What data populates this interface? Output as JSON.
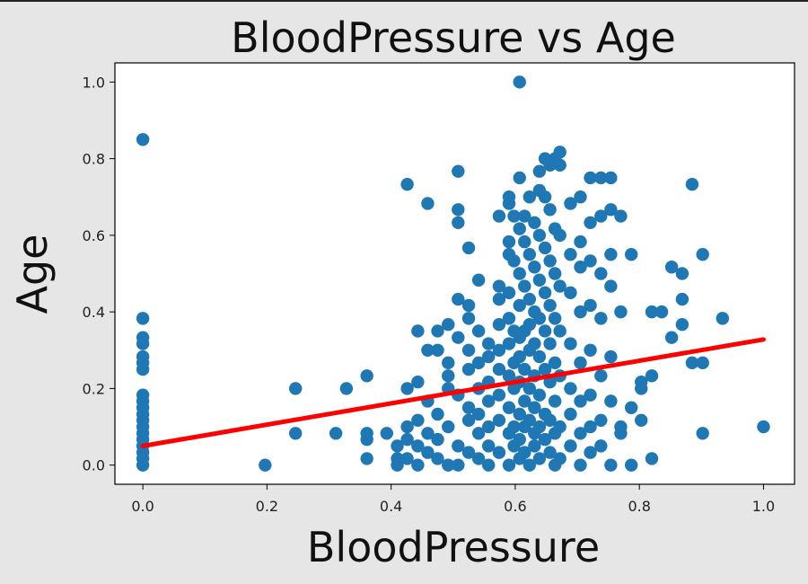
{
  "chart_data": {
    "type": "scatter",
    "title": "BloodPressure vs Age",
    "xlabel": "BloodPressure",
    "ylabel": "Age",
    "xlim": [
      -0.045,
      1.05
    ],
    "ylim": [
      -0.05,
      1.05
    ],
    "xticks": [
      "0.0",
      "0.2",
      "0.4",
      "0.6",
      "0.8",
      "1.0"
    ],
    "yticks": [
      "0.0",
      "0.2",
      "0.4",
      "0.6",
      "0.8",
      "1.0"
    ],
    "grid": false,
    "colors": {
      "points": "#1f77b4",
      "regression": "#ff0000"
    },
    "series": [
      {
        "kind": "points",
        "points": [
          [
            0.0,
            0.85
          ],
          [
            0.0,
            0.383
          ],
          [
            0.0,
            0.333
          ],
          [
            0.0,
            0.317
          ],
          [
            0.0,
            0.283
          ],
          [
            0.0,
            0.267
          ],
          [
            0.0,
            0.25
          ],
          [
            0.0,
            0.183
          ],
          [
            0.0,
            0.167
          ],
          [
            0.0,
            0.15
          ],
          [
            0.0,
            0.133
          ],
          [
            0.0,
            0.117
          ],
          [
            0.0,
            0.1
          ],
          [
            0.0,
            0.083
          ],
          [
            0.0,
            0.067
          ],
          [
            0.0,
            0.05
          ],
          [
            0.0,
            0.033
          ],
          [
            0.0,
            0.017
          ],
          [
            0.0,
            0.0
          ],
          [
            0.197,
            0.0
          ],
          [
            0.246,
            0.2
          ],
          [
            0.246,
            0.083
          ],
          [
            0.311,
            0.083
          ],
          [
            0.328,
            0.2
          ],
          [
            0.361,
            0.233
          ],
          [
            0.361,
            0.083
          ],
          [
            0.361,
            0.067
          ],
          [
            0.361,
            0.017
          ],
          [
            0.393,
            0.083
          ],
          [
            0.41,
            0.05
          ],
          [
            0.41,
            0.017
          ],
          [
            0.41,
            0.0
          ],
          [
            0.426,
            0.2
          ],
          [
            0.426,
            0.1
          ],
          [
            0.426,
            0.067
          ],
          [
            0.426,
            0.017
          ],
          [
            0.426,
            0.733
          ],
          [
            0.443,
            0.35
          ],
          [
            0.443,
            0.217
          ],
          [
            0.443,
            0.117
          ],
          [
            0.443,
            0.05
          ],
          [
            0.443,
            0.0
          ],
          [
            0.459,
            0.683
          ],
          [
            0.459,
            0.3
          ],
          [
            0.459,
            0.167
          ],
          [
            0.459,
            0.083
          ],
          [
            0.459,
            0.033
          ],
          [
            0.475,
            0.35
          ],
          [
            0.475,
            0.3
          ],
          [
            0.475,
            0.133
          ],
          [
            0.475,
            0.067
          ],
          [
            0.475,
            0.017
          ],
          [
            0.492,
            0.367
          ],
          [
            0.492,
            0.267
          ],
          [
            0.492,
            0.2
          ],
          [
            0.492,
            0.1
          ],
          [
            0.492,
            0.0
          ],
          [
            0.492,
            0.233
          ],
          [
            0.508,
            0.767
          ],
          [
            0.508,
            0.667
          ],
          [
            0.508,
            0.633
          ],
          [
            0.508,
            0.433
          ],
          [
            0.508,
            0.333
          ],
          [
            0.508,
            0.183
          ],
          [
            0.508,
            0.05
          ],
          [
            0.508,
            0.0
          ],
          [
            0.525,
            0.567
          ],
          [
            0.525,
            0.417
          ],
          [
            0.525,
            0.383
          ],
          [
            0.525,
            0.3
          ],
          [
            0.525,
            0.25
          ],
          [
            0.525,
            0.15
          ],
          [
            0.525,
            0.117
          ],
          [
            0.525,
            0.033
          ],
          [
            0.541,
            0.483
          ],
          [
            0.541,
            0.35
          ],
          [
            0.541,
            0.267
          ],
          [
            0.541,
            0.2
          ],
          [
            0.541,
            0.133
          ],
          [
            0.541,
            0.083
          ],
          [
            0.541,
            0.017
          ],
          [
            0.557,
            0.317
          ],
          [
            0.557,
            0.283
          ],
          [
            0.557,
            0.217
          ],
          [
            0.557,
            0.167
          ],
          [
            0.557,
            0.1
          ],
          [
            0.557,
            0.05
          ],
          [
            0.557,
            0.0
          ],
          [
            0.574,
            0.65
          ],
          [
            0.574,
            0.467
          ],
          [
            0.574,
            0.433
          ],
          [
            0.574,
            0.367
          ],
          [
            0.574,
            0.3
          ],
          [
            0.574,
            0.25
          ],
          [
            0.574,
            0.183
          ],
          [
            0.574,
            0.117
          ],
          [
            0.574,
            0.033
          ],
          [
            0.59,
            0.7
          ],
          [
            0.59,
            0.683
          ],
          [
            0.59,
            0.583
          ],
          [
            0.59,
            0.55
          ],
          [
            0.59,
            0.45
          ],
          [
            0.59,
            0.383
          ],
          [
            0.59,
            0.317
          ],
          [
            0.59,
            0.233
          ],
          [
            0.59,
            0.15
          ],
          [
            0.59,
            0.083
          ],
          [
            0.59,
            0.0
          ],
          [
            0.598,
            0.65
          ],
          [
            0.598,
            0.533
          ],
          [
            0.598,
            0.35
          ],
          [
            0.598,
            0.267
          ],
          [
            0.598,
            0.2
          ],
          [
            0.598,
            0.1
          ],
          [
            0.598,
            0.05
          ],
          [
            0.607,
            1.0
          ],
          [
            0.607,
            0.75
          ],
          [
            0.607,
            0.617
          ],
          [
            0.607,
            0.5
          ],
          [
            0.607,
            0.417
          ],
          [
            0.607,
            0.333
          ],
          [
            0.607,
            0.283
          ],
          [
            0.607,
            0.217
          ],
          [
            0.607,
            0.133
          ],
          [
            0.607,
            0.067
          ],
          [
            0.607,
            0.017
          ],
          [
            0.615,
            0.65
          ],
          [
            0.615,
            0.583
          ],
          [
            0.615,
            0.467
          ],
          [
            0.615,
            0.35
          ],
          [
            0.615,
            0.25
          ],
          [
            0.615,
            0.167
          ],
          [
            0.615,
            0.1
          ],
          [
            0.615,
            0.033
          ],
          [
            0.623,
            0.7
          ],
          [
            0.623,
            0.55
          ],
          [
            0.623,
            0.433
          ],
          [
            0.623,
            0.367
          ],
          [
            0.623,
            0.3
          ],
          [
            0.623,
            0.2
          ],
          [
            0.623,
            0.117
          ],
          [
            0.623,
            0.0
          ],
          [
            0.631,
            0.633
          ],
          [
            0.631,
            0.517
          ],
          [
            0.631,
            0.4
          ],
          [
            0.631,
            0.317
          ],
          [
            0.631,
            0.233
          ],
          [
            0.631,
            0.15
          ],
          [
            0.631,
            0.083
          ],
          [
            0.631,
            0.05
          ],
          [
            0.639,
            0.767
          ],
          [
            0.639,
            0.717
          ],
          [
            0.639,
            0.6
          ],
          [
            0.639,
            0.483
          ],
          [
            0.639,
            0.383
          ],
          [
            0.639,
            0.283
          ],
          [
            0.639,
            0.183
          ],
          [
            0.639,
            0.1
          ],
          [
            0.639,
            0.017
          ],
          [
            0.648,
            0.8
          ],
          [
            0.648,
            0.7
          ],
          [
            0.648,
            0.567
          ],
          [
            0.648,
            0.45
          ],
          [
            0.648,
            0.35
          ],
          [
            0.648,
            0.25
          ],
          [
            0.648,
            0.133
          ],
          [
            0.648,
            0.067
          ],
          [
            0.656,
            0.783
          ],
          [
            0.656,
            0.667
          ],
          [
            0.656,
            0.533
          ],
          [
            0.656,
            0.417
          ],
          [
            0.656,
            0.317
          ],
          [
            0.656,
            0.217
          ],
          [
            0.656,
            0.117
          ],
          [
            0.656,
            0.033
          ],
          [
            0.664,
            0.8
          ],
          [
            0.664,
            0.617
          ],
          [
            0.664,
            0.5
          ],
          [
            0.664,
            0.383
          ],
          [
            0.664,
            0.267
          ],
          [
            0.664,
            0.167
          ],
          [
            0.664,
            0.083
          ],
          [
            0.664,
            0.0
          ],
          [
            0.672,
            0.817
          ],
          [
            0.672,
            0.783
          ],
          [
            0.672,
            0.6
          ],
          [
            0.672,
            0.467
          ],
          [
            0.672,
            0.35
          ],
          [
            0.672,
            0.233
          ],
          [
            0.672,
            0.1
          ],
          [
            0.672,
            0.017
          ],
          [
            0.689,
            0.683
          ],
          [
            0.689,
            0.55
          ],
          [
            0.689,
            0.45
          ],
          [
            0.689,
            0.317
          ],
          [
            0.689,
            0.2
          ],
          [
            0.689,
            0.133
          ],
          [
            0.689,
            0.05
          ],
          [
            0.705,
            0.7
          ],
          [
            0.705,
            0.517
          ],
          [
            0.705,
            0.4
          ],
          [
            0.705,
            0.267
          ],
          [
            0.705,
            0.167
          ],
          [
            0.705,
            0.083
          ],
          [
            0.705,
            0.0
          ],
          [
            0.705,
            0.583
          ],
          [
            0.721,
            0.75
          ],
          [
            0.721,
            0.533
          ],
          [
            0.721,
            0.417
          ],
          [
            0.721,
            0.3
          ],
          [
            0.721,
            0.183
          ],
          [
            0.721,
            0.1
          ],
          [
            0.721,
            0.033
          ],
          [
            0.721,
            0.633
          ],
          [
            0.738,
            0.75
          ],
          [
            0.738,
            0.65
          ],
          [
            0.738,
            0.5
          ],
          [
            0.738,
            0.383
          ],
          [
            0.738,
            0.233
          ],
          [
            0.738,
            0.117
          ],
          [
            0.738,
            0.05
          ],
          [
            0.754,
            0.75
          ],
          [
            0.754,
            0.667
          ],
          [
            0.754,
            0.55
          ],
          [
            0.754,
            0.467
          ],
          [
            0.754,
            0.283
          ],
          [
            0.754,
            0.167
          ],
          [
            0.754,
            0.0
          ],
          [
            0.77,
            0.65
          ],
          [
            0.77,
            0.4
          ],
          [
            0.77,
            0.1
          ],
          [
            0.77,
            0.083
          ],
          [
            0.787,
            0.55
          ],
          [
            0.787,
            0.15
          ],
          [
            0.787,
            0.0
          ],
          [
            0.803,
            0.217
          ],
          [
            0.803,
            0.2
          ],
          [
            0.803,
            0.117
          ],
          [
            0.82,
            0.4
          ],
          [
            0.82,
            0.233
          ],
          [
            0.82,
            0.017
          ],
          [
            0.836,
            0.4
          ],
          [
            0.852,
            0.517
          ],
          [
            0.852,
            0.333
          ],
          [
            0.869,
            0.5
          ],
          [
            0.869,
            0.433
          ],
          [
            0.869,
            0.367
          ],
          [
            0.885,
            0.733
          ],
          [
            0.885,
            0.267
          ],
          [
            0.902,
            0.55
          ],
          [
            0.902,
            0.267
          ],
          [
            0.902,
            0.083
          ],
          [
            0.934,
            0.383
          ],
          [
            1.0,
            0.1
          ]
        ]
      },
      {
        "kind": "regression_line",
        "x": [
          0.0,
          1.0
        ],
        "y": [
          0.05,
          0.328
        ]
      }
    ]
  }
}
